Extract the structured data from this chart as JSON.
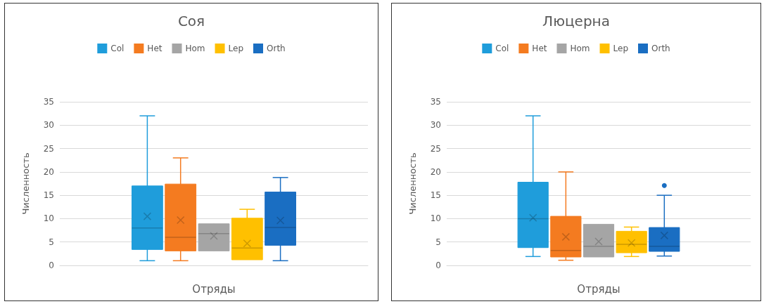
{
  "chart_data": [
    {
      "type": "box",
      "title": "Соя",
      "xlabel": "Отряды",
      "ylabel": "Численность",
      "categories": [
        null
      ],
      "ylim": [
        0,
        35
      ],
      "yticks": [
        0,
        5,
        10,
        15,
        20,
        25,
        30,
        35
      ],
      "grid": "y",
      "legend": "top",
      "series": [
        {
          "name": "Col",
          "color": "#1f9ddb",
          "boxes": [
            {
              "low": 1,
              "q1": 3.4,
              "median": 8,
              "q3": 17,
              "high": 32,
              "mean": 10.5
            }
          ]
        },
        {
          "name": "Het",
          "color": "#f47b20",
          "boxes": [
            {
              "low": 1,
              "q1": 3.1,
              "median": 6,
              "q3": 17.4,
              "high": 23,
              "mean": 9.7
            }
          ]
        },
        {
          "name": "Hom",
          "color": "#a5a5a5",
          "boxes": [
            {
              "low": 3.1,
              "q1": 3.1,
              "median": 6.8,
              "q3": 8.9,
              "high": 8.9,
              "mean": 6.3
            }
          ]
        },
        {
          "name": "Lep",
          "color": "#ffc000",
          "boxes": [
            {
              "low": 1.2,
              "q1": 1.2,
              "median": 3.7,
              "q3": 10.1,
              "high": 12,
              "mean": 4.7
            }
          ]
        },
        {
          "name": "Orth",
          "color": "#1a6ec2",
          "boxes": [
            {
              "low": 1,
              "q1": 4.3,
              "median": 8.1,
              "q3": 15.7,
              "high": 18.8,
              "mean": 9.6
            }
          ]
        }
      ]
    },
    {
      "type": "box",
      "title": "Люцерна",
      "xlabel": "Отряды",
      "ylabel": "Численность",
      "categories": [
        null
      ],
      "ylim": [
        0,
        35
      ],
      "yticks": [
        0,
        5,
        10,
        15,
        20,
        25,
        30,
        35
      ],
      "grid": "y",
      "legend": "top",
      "series": [
        {
          "name": "Col",
          "color": "#1f9ddb",
          "boxes": [
            {
              "low": 1.9,
              "q1": 3.8,
              "median": 10,
              "q3": 17.8,
              "high": 32,
              "mean": 10.2
            }
          ]
        },
        {
          "name": "Het",
          "color": "#f47b20",
          "boxes": [
            {
              "low": 1.1,
              "q1": 1.8,
              "median": 3.2,
              "q3": 10.5,
              "high": 20,
              "mean": 6.1
            }
          ]
        },
        {
          "name": "Hom",
          "color": "#a5a5a5",
          "boxes": [
            {
              "low": 1.8,
              "q1": 1.8,
              "median": 4.1,
              "q3": 8.8,
              "high": 8.8,
              "mean": 5.1
            }
          ]
        },
        {
          "name": "Lep",
          "color": "#ffc000",
          "boxes": [
            {
              "low": 1.9,
              "q1": 2.7,
              "median": 4.5,
              "q3": 7.3,
              "high": 8.2,
              "mean": 4.8
            }
          ]
        },
        {
          "name": "Orth",
          "color": "#1a6ec2",
          "boxes": [
            {
              "low": 2,
              "q1": 3,
              "median": 4.1,
              "q3": 8.1,
              "high": 15,
              "mean": 6.4,
              "outliers": [
                17.1
              ]
            }
          ]
        }
      ]
    }
  ]
}
